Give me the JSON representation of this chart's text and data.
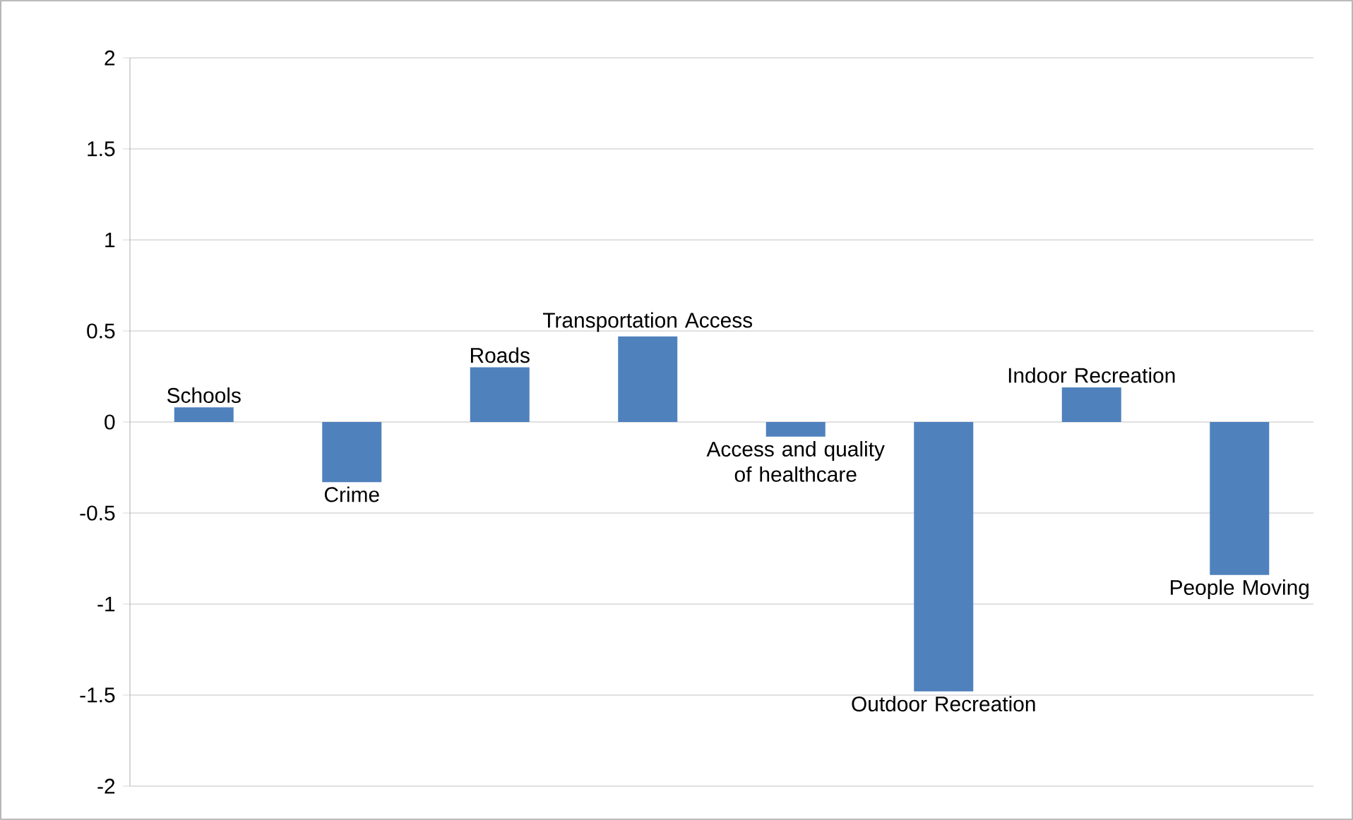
{
  "chart_data": {
    "type": "bar",
    "categories": [
      "Schools",
      "Crime",
      "Roads",
      "Transportation Access",
      "Access and quality of healthcare",
      "Outdoor Recreation",
      "Indoor Recreation",
      "People Moving"
    ],
    "values": [
      0.08,
      -0.33,
      0.3,
      0.47,
      -0.08,
      -1.48,
      0.19,
      -0.84
    ],
    "color": "#4f81bd",
    "ylim": [
      -2,
      2
    ],
    "yticks": [
      -2,
      -1.5,
      -1,
      -0.5,
      0,
      0.5,
      1,
      1.5,
      2
    ],
    "grid": "y",
    "tick_labels": "y"
  }
}
